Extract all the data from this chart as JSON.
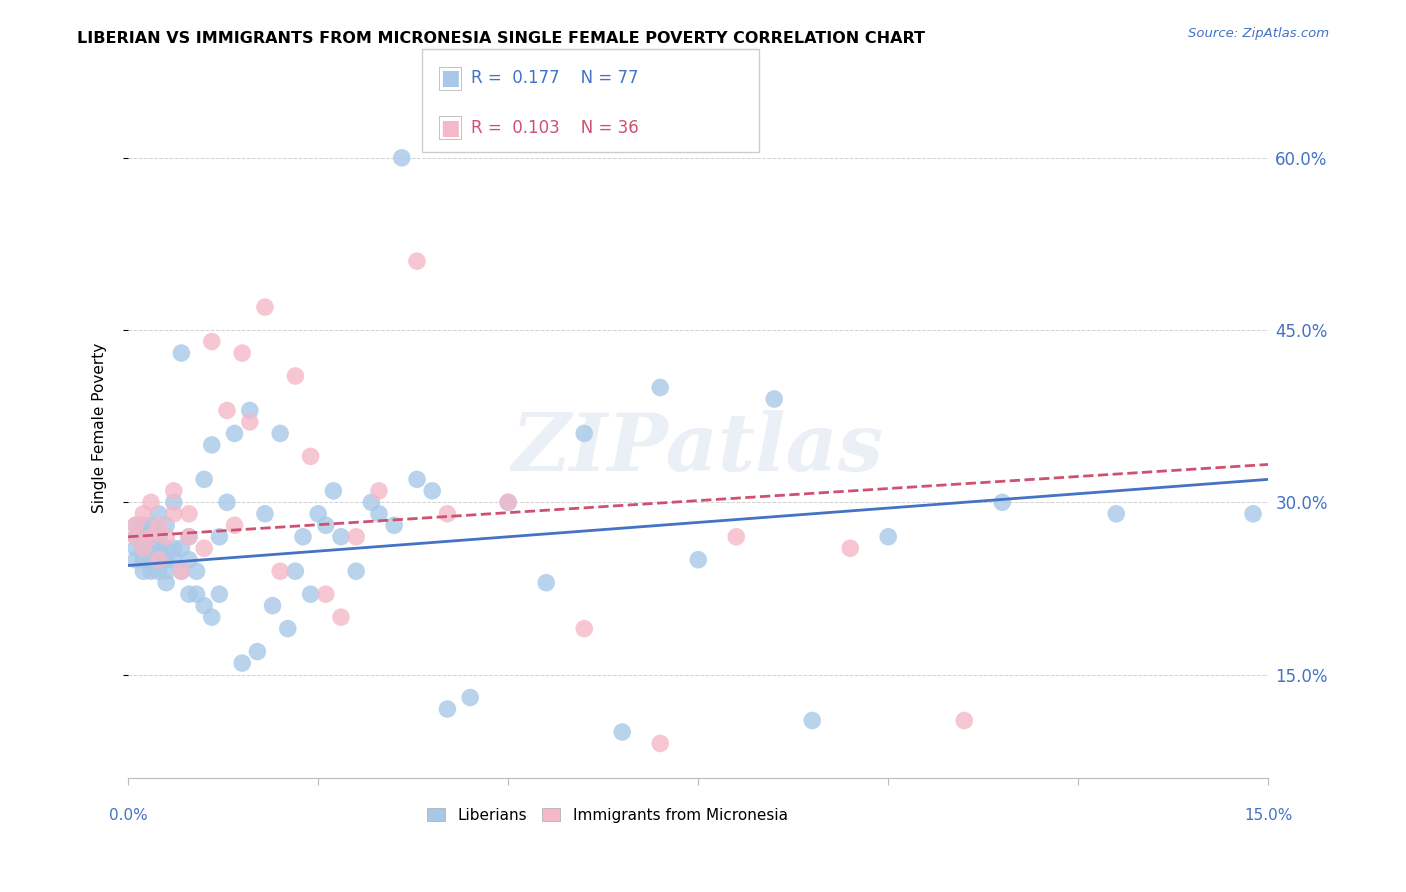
{
  "title": "LIBERIAN VS IMMIGRANTS FROM MICRONESIA SINGLE FEMALE POVERTY CORRELATION CHART",
  "source": "Source: ZipAtlas.com",
  "ylabel": "Single Female Poverty",
  "ytick_values": [
    0.15,
    0.3,
    0.45,
    0.6
  ],
  "xlim": [
    0.0,
    0.15
  ],
  "ylim": [
    0.06,
    0.67
  ],
  "legend_r1": "0.177",
  "legend_n1": "77",
  "legend_r2": "0.103",
  "legend_n2": "36",
  "color_blue": "#a8c8e8",
  "color_pink": "#f4b8c8",
  "color_blue_text": "#4472c4",
  "color_pink_text": "#d05070",
  "color_line_blue": "#4472c4",
  "color_line_pink": "#d05070",
  "watermark": "ZIPatlas",
  "liberian_x": [
    0.001,
    0.001,
    0.001,
    0.001,
    0.002,
    0.002,
    0.002,
    0.002,
    0.002,
    0.003,
    0.003,
    0.003,
    0.003,
    0.004,
    0.004,
    0.004,
    0.004,
    0.004,
    0.005,
    0.005,
    0.005,
    0.005,
    0.005,
    0.006,
    0.006,
    0.006,
    0.007,
    0.007,
    0.007,
    0.008,
    0.008,
    0.008,
    0.009,
    0.009,
    0.01,
    0.01,
    0.011,
    0.011,
    0.012,
    0.012,
    0.013,
    0.014,
    0.015,
    0.016,
    0.017,
    0.018,
    0.019,
    0.02,
    0.021,
    0.022,
    0.023,
    0.024,
    0.025,
    0.026,
    0.027,
    0.028,
    0.03,
    0.032,
    0.033,
    0.035,
    0.036,
    0.038,
    0.04,
    0.042,
    0.045,
    0.05,
    0.055,
    0.06,
    0.065,
    0.07,
    0.075,
    0.085,
    0.09,
    0.1,
    0.115,
    0.13,
    0.148
  ],
  "liberian_y": [
    0.25,
    0.26,
    0.27,
    0.28,
    0.24,
    0.25,
    0.26,
    0.27,
    0.28,
    0.24,
    0.25,
    0.26,
    0.28,
    0.24,
    0.25,
    0.26,
    0.27,
    0.29,
    0.23,
    0.24,
    0.25,
    0.26,
    0.28,
    0.25,
    0.26,
    0.3,
    0.24,
    0.26,
    0.43,
    0.22,
    0.25,
    0.27,
    0.22,
    0.24,
    0.21,
    0.32,
    0.2,
    0.35,
    0.22,
    0.27,
    0.3,
    0.36,
    0.16,
    0.38,
    0.17,
    0.29,
    0.21,
    0.36,
    0.19,
    0.24,
    0.27,
    0.22,
    0.29,
    0.28,
    0.31,
    0.27,
    0.24,
    0.3,
    0.29,
    0.28,
    0.6,
    0.32,
    0.31,
    0.12,
    0.13,
    0.3,
    0.23,
    0.36,
    0.1,
    0.4,
    0.25,
    0.39,
    0.11,
    0.27,
    0.3,
    0.29,
    0.29
  ],
  "micronesia_x": [
    0.001,
    0.001,
    0.002,
    0.002,
    0.003,
    0.003,
    0.004,
    0.004,
    0.005,
    0.006,
    0.006,
    0.007,
    0.008,
    0.008,
    0.01,
    0.011,
    0.013,
    0.014,
    0.015,
    0.016,
    0.018,
    0.02,
    0.022,
    0.024,
    0.026,
    0.028,
    0.03,
    0.033,
    0.038,
    0.042,
    0.05,
    0.06,
    0.07,
    0.08,
    0.095,
    0.11
  ],
  "micronesia_y": [
    0.27,
    0.28,
    0.26,
    0.29,
    0.27,
    0.3,
    0.25,
    0.28,
    0.27,
    0.29,
    0.31,
    0.24,
    0.27,
    0.29,
    0.26,
    0.44,
    0.38,
    0.28,
    0.43,
    0.37,
    0.47,
    0.24,
    0.41,
    0.34,
    0.22,
    0.2,
    0.27,
    0.31,
    0.51,
    0.29,
    0.3,
    0.19,
    0.09,
    0.27,
    0.26,
    0.11
  ]
}
